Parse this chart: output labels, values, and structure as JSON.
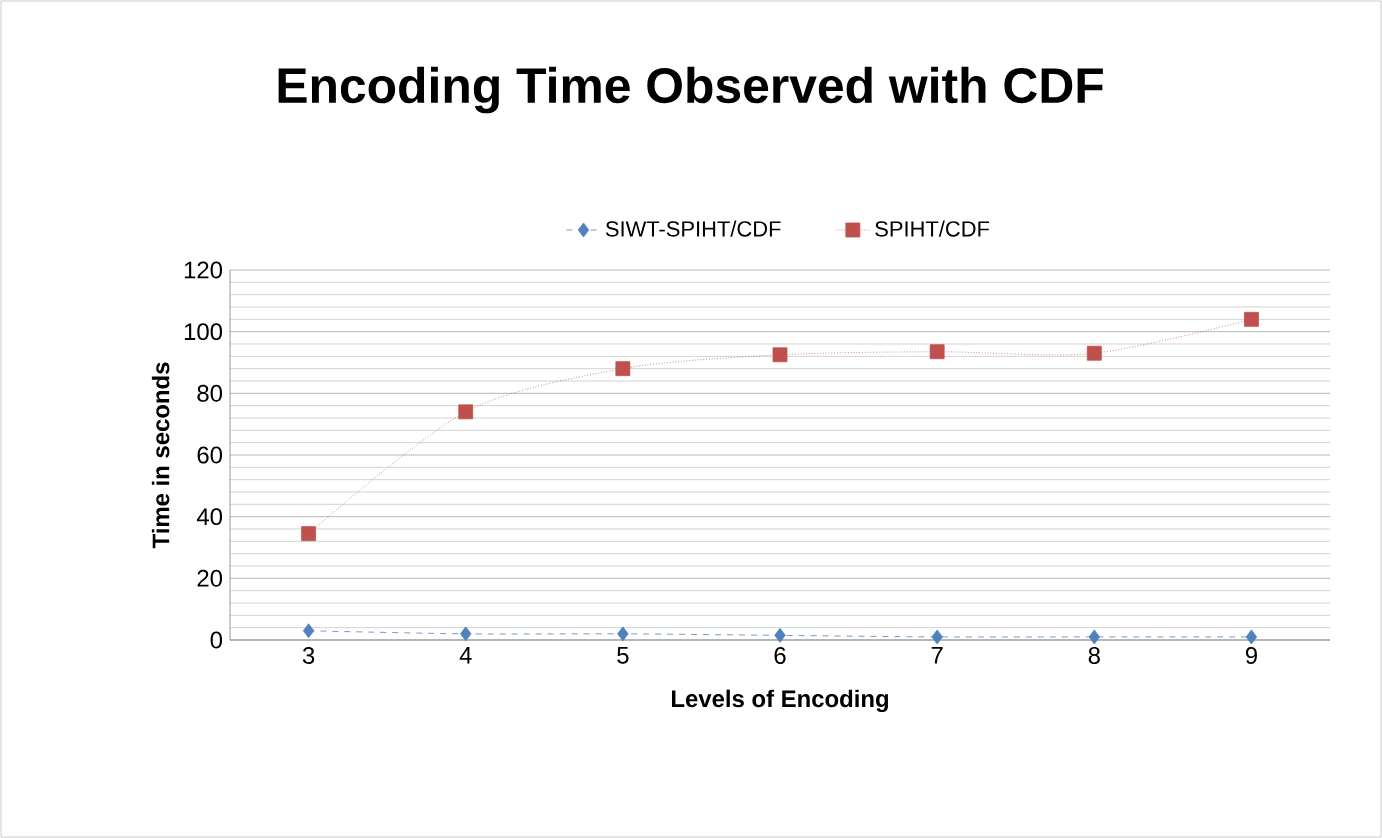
{
  "chart_data": {
    "type": "line",
    "title": "Encoding Time Observed with CDF",
    "xlabel": "Levels of Encoding",
    "ylabel": "Time in seconds",
    "categories": [
      "3",
      "4",
      "5",
      "6",
      "7",
      "8",
      "9"
    ],
    "series": [
      {
        "name": "SIWT-SPIHT/CDF",
        "color": "#4f81bd",
        "marker": "diamond",
        "line_style": "dashed",
        "values": [
          3,
          2,
          2,
          1.5,
          1,
          1,
          1
        ]
      },
      {
        "name": "SPIHT/CDF",
        "color": "#c0504d",
        "marker": "square",
        "line_style": "dotted",
        "values": [
          34.5,
          74,
          88,
          92.5,
          93.5,
          93,
          104
        ]
      }
    ],
    "ylim": [
      0,
      120
    ],
    "yticks": [
      0,
      20,
      40,
      60,
      80,
      100,
      120
    ],
    "grid": "y",
    "legend": "top"
  }
}
